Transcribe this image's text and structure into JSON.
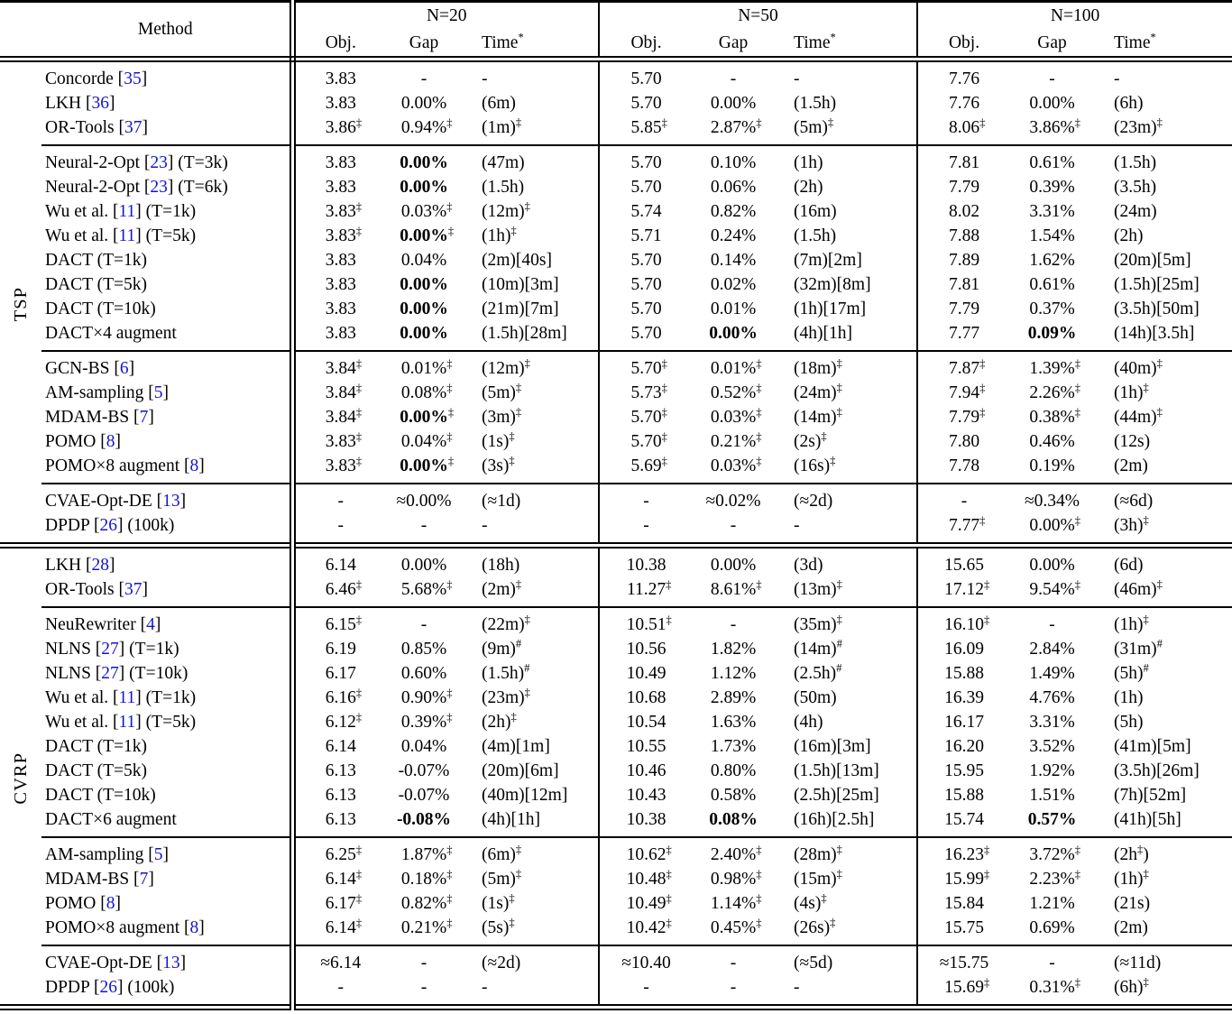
{
  "meta": {
    "ref_color": "#1515CF",
    "text_color": "#000000",
    "rule_color": "#000000"
  },
  "table": {
    "header": {
      "method_label": "Method",
      "group_labels": [
        "N=20",
        "N=50",
        "N=100"
      ],
      "subcols": [
        "Obj.",
        "Gap",
        "Time*"
      ]
    },
    "sections": [
      {
        "label": "TSP",
        "groups": [
          {
            "rows": [
              {
                "method": "Concorde [35]",
                "cells": [
                  "3.83",
                  "-",
                  "-",
                  "5.70",
                  "-",
                  "-",
                  "7.76",
                  "-",
                  "-"
                ]
              },
              {
                "method": "LKH [36]",
                "cells": [
                  "3.83",
                  "0.00%",
                  "(6m)",
                  "5.70",
                  "0.00%",
                  "(1.5h)",
                  "7.76",
                  "0.00%",
                  "(6h)"
                ]
              },
              {
                "method": "OR-Tools [37]",
                "cells": [
                  "3.86‡",
                  "0.94%‡",
                  "(1m)‡",
                  "5.85‡",
                  "2.87%‡",
                  "(5m)‡",
                  "8.06‡",
                  "3.86%‡",
                  "(23m)‡"
                ]
              }
            ]
          },
          {
            "rows": [
              {
                "method": "Neural-2-Opt [23] (T=3k)",
                "cells": [
                  "3.83",
                  "**0.00%**",
                  "(47m)",
                  "5.70",
                  "0.10%",
                  "(1h)",
                  "7.81",
                  "0.61%",
                  "(1.5h)"
                ]
              },
              {
                "method": "Neural-2-Opt [23] (T=6k)",
                "cells": [
                  "3.83",
                  "**0.00%**",
                  "(1.5h)",
                  "5.70",
                  "0.06%",
                  "(2h)",
                  "7.79",
                  "0.39%",
                  "(3.5h)"
                ]
              },
              {
                "method": "Wu et al. [11] (T=1k)",
                "cells": [
                  "3.83‡",
                  "0.03%‡",
                  "(12m)‡",
                  "5.74",
                  "0.82%",
                  "(16m)",
                  "8.02",
                  "3.31%",
                  "(24m)"
                ]
              },
              {
                "method": "Wu et al. [11] (T=5k)",
                "cells": [
                  "3.83‡",
                  "**0.00%**‡",
                  "(1h)‡",
                  "5.71",
                  "0.24%",
                  "(1.5h)",
                  "7.88",
                  "1.54%",
                  "(2h)"
                ]
              },
              {
                "method": "DACT (T=1k)",
                "cells": [
                  "3.83",
                  "0.04%",
                  "(2m)[40s]",
                  "5.70",
                  "0.14%",
                  "(7m)[2m]",
                  "7.89",
                  "1.62%",
                  "(20m)[5m]"
                ]
              },
              {
                "method": "DACT (T=5k)",
                "cells": [
                  "3.83",
                  "**0.00%**",
                  "(10m)[3m]",
                  "5.70",
                  "0.02%",
                  "(32m)[8m]",
                  "7.81",
                  "0.61%",
                  "(1.5h)[25m]"
                ]
              },
              {
                "method": "DACT (T=10k)",
                "cells": [
                  "3.83",
                  "**0.00%**",
                  "(21m)[7m]",
                  "5.70",
                  "0.01%",
                  "(1h)[17m]",
                  "7.79",
                  "0.37%",
                  "(3.5h)[50m]"
                ]
              },
              {
                "method": "DACT×4 augment",
                "cells": [
                  "3.83",
                  "**0.00%**",
                  "(1.5h)[28m]",
                  "5.70",
                  "**0.00%**",
                  "(4h)[1h]",
                  "7.77",
                  "**0.09%**",
                  "(14h)[3.5h]"
                ]
              }
            ]
          },
          {
            "rows": [
              {
                "method": "GCN-BS [6]",
                "cells": [
                  "3.84‡",
                  "0.01%‡",
                  "(12m)‡",
                  "5.70‡",
                  "0.01%‡",
                  "(18m)‡",
                  "7.87‡",
                  "1.39%‡",
                  "(40m)‡"
                ]
              },
              {
                "method": "AM-sampling [5]",
                "cells": [
                  "3.84‡",
                  "0.08%‡",
                  "(5m)‡",
                  "5.73‡",
                  "0.52%‡",
                  "(24m)‡",
                  "7.94‡",
                  "2.26%‡",
                  "(1h)‡"
                ]
              },
              {
                "method": "MDAM-BS [7]",
                "cells": [
                  "3.84‡",
                  "**0.00%**‡",
                  "(3m)‡",
                  "5.70‡",
                  "0.03%‡",
                  "(14m)‡",
                  "7.79‡",
                  "0.38%‡",
                  "(44m)‡"
                ]
              },
              {
                "method": "POMO [8]",
                "cells": [
                  "3.83‡",
                  "0.04%‡",
                  "(1s)‡",
                  "5.70‡",
                  "0.21%‡",
                  "(2s)‡",
                  "7.80",
                  "0.46%",
                  "(12s)"
                ]
              },
              {
                "method": "POMO×8 augment [8]",
                "cells": [
                  "3.83‡",
                  "**0.00%**‡",
                  "(3s)‡",
                  "5.69‡",
                  "0.03%‡",
                  "(16s)‡",
                  "7.78",
                  "0.19%",
                  "(2m)"
                ]
              }
            ]
          },
          {
            "rows": [
              {
                "method": "CVAE-Opt-DE [13]",
                "cells": [
                  "-",
                  "≈0.00%",
                  "(≈1d)",
                  "-",
                  "≈0.02%",
                  "(≈2d)",
                  "-",
                  "≈0.34%",
                  "(≈6d)"
                ]
              },
              {
                "method": "DPDP [26] (100k)",
                "cells": [
                  "-",
                  "-",
                  "-",
                  "-",
                  "-",
                  "-",
                  "7.77‡",
                  "0.00%‡",
                  "(3h)‡"
                ]
              }
            ]
          }
        ]
      },
      {
        "label": "CVRP",
        "groups": [
          {
            "rows": [
              {
                "method": "LKH [28]",
                "cells": [
                  "6.14",
                  "0.00%",
                  "(18h)",
                  "10.38",
                  "0.00%",
                  "(3d)",
                  "15.65",
                  "0.00%",
                  "(6d)"
                ]
              },
              {
                "method": "OR-Tools [37]",
                "cells": [
                  "6.46‡",
                  "5.68%‡",
                  "(2m)‡",
                  "11.27‡",
                  "8.61%‡",
                  "(13m)‡",
                  "17.12‡",
                  "9.54%‡",
                  "(46m)‡"
                ]
              }
            ]
          },
          {
            "rows": [
              {
                "method": "NeuRewriter [4]",
                "cells": [
                  "6.15‡",
                  "-",
                  "(22m)‡",
                  "10.51‡",
                  "-",
                  "(35m)‡",
                  "16.10‡",
                  "-",
                  "(1h)‡"
                ]
              },
              {
                "method": "NLNS [27] (T=1k)",
                "cells": [
                  "6.19",
                  "0.85%",
                  "(9m)#",
                  "10.56",
                  "1.82%",
                  "(14m)#",
                  "16.09",
                  "2.84%",
                  "(31m)#"
                ]
              },
              {
                "method": "NLNS [27] (T=10k)",
                "cells": [
                  "6.17",
                  "0.60%",
                  "(1.5h)#",
                  "10.49",
                  "1.12%",
                  "(2.5h)#",
                  "15.88",
                  "1.49%",
                  "(5h)#"
                ]
              },
              {
                "method": "Wu et al. [11] (T=1k)",
                "cells": [
                  "6.16‡",
                  "0.90%‡",
                  "(23m)‡",
                  "10.68",
                  "2.89%",
                  "(50m)",
                  "16.39",
                  "4.76%",
                  "(1h)"
                ]
              },
              {
                "method": "Wu et al. [11] (T=5k)",
                "cells": [
                  "6.12‡",
                  "0.39%‡",
                  "(2h)‡",
                  "10.54",
                  "1.63%",
                  "(4h)",
                  "16.17",
                  "3.31%",
                  "(5h)"
                ]
              },
              {
                "method": "DACT (T=1k)",
                "cells": [
                  "6.14",
                  "0.04%",
                  "(4m)[1m]",
                  "10.55",
                  "1.73%",
                  "(16m)[3m]",
                  "16.20",
                  "3.52%",
                  "(41m)[5m]"
                ]
              },
              {
                "method": "DACT (T=5k)",
                "cells": [
                  "6.13",
                  "-0.07%",
                  "(20m)[6m]",
                  "10.46",
                  "0.80%",
                  "(1.5h)[13m]",
                  "15.95",
                  "1.92%",
                  "(3.5h)[26m]"
                ]
              },
              {
                "method": "DACT (T=10k)",
                "cells": [
                  "6.13",
                  "-0.07%",
                  "(40m)[12m]",
                  "10.43",
                  "0.58%",
                  "(2.5h)[25m]",
                  "15.88",
                  "1.51%",
                  "(7h)[52m]"
                ]
              },
              {
                "method": "DACT×6 augment",
                "cells": [
                  "6.13",
                  "**-0.08%**",
                  "(4h)[1h]",
                  "10.38",
                  "**0.08%**",
                  "(16h)[2.5h]",
                  "15.74",
                  "**0.57%**",
                  "(41h)[5h]"
                ]
              }
            ]
          },
          {
            "rows": [
              {
                "method": "AM-sampling [5]",
                "cells": [
                  "6.25‡",
                  "1.87%‡",
                  "(6m)‡",
                  "10.62‡",
                  "2.40%‡",
                  "(28m)‡",
                  "16.23‡",
                  "3.72%‡",
                  "(2h‡)"
                ]
              },
              {
                "method": "MDAM-BS [7]",
                "cells": [
                  "6.14‡",
                  "0.18%‡",
                  "(5m)‡",
                  "10.48‡",
                  "0.98%‡",
                  "(15m)‡",
                  "15.99‡",
                  "2.23%‡",
                  "(1h)‡"
                ]
              },
              {
                "method": "POMO [8]",
                "cells": [
                  "6.17‡",
                  "0.82%‡",
                  "(1s)‡",
                  "10.49‡",
                  "1.14%‡",
                  "(4s)‡",
                  "15.84",
                  "1.21%",
                  "(21s)"
                ]
              },
              {
                "method": "POMO×8 augment [8]",
                "cells": [
                  "6.14‡",
                  "0.21%‡",
                  "(5s)‡",
                  "10.42‡",
                  "0.45%‡",
                  "(26s)‡",
                  "15.75",
                  "0.69%",
                  "(2m)"
                ]
              }
            ]
          },
          {
            "rows": [
              {
                "method": "CVAE-Opt-DE [13]",
                "cells": [
                  "≈6.14",
                  "-",
                  "(≈2d)",
                  "≈10.40",
                  "-",
                  "(≈5d)",
                  "≈15.75",
                  "-",
                  "(≈11d)"
                ]
              },
              {
                "method": "DPDP [26] (100k)",
                "cells": [
                  "-",
                  "-",
                  "-",
                  "-",
                  "-",
                  "-",
                  "15.69‡",
                  "0.31%‡",
                  "(6h)‡"
                ]
              }
            ]
          }
        ]
      }
    ]
  }
}
